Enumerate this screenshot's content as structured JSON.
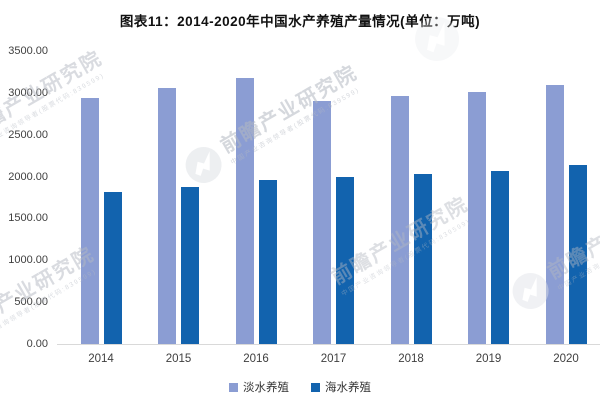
{
  "watermark": {
    "brand": "前瞻产业研究院",
    "subtext": "中国产业咨询领导者(股票代码:839599)"
  },
  "chart_data": {
    "type": "bar",
    "title": "图表11：2014-2020年中国水产养殖产量情况(单位：万吨)",
    "unit": "万吨",
    "categories": [
      "2014",
      "2015",
      "2016",
      "2017",
      "2018",
      "2019",
      "2020"
    ],
    "series": [
      {
        "name": "淡水养殖",
        "color": "#8B9DD3",
        "values": [
          2935.76,
          3062.27,
          3179.26,
          2905.02,
          2959.84,
          3013.74,
          3088.89
        ]
      },
      {
        "name": "海水养殖",
        "color": "#1263AE",
        "values": [
          1812.65,
          1875.63,
          1963.13,
          2000.7,
          2031.22,
          2065.33,
          2135.31
        ]
      }
    ],
    "xlabel": "",
    "ylabel": "",
    "ylim": [
      0,
      3500
    ],
    "ytick_step": 500,
    "ytick_labels": [
      "0.00",
      "500.00",
      "1000.00",
      "1500.00",
      "2000.00",
      "2500.00",
      "3000.00",
      "3500.00"
    ],
    "grid": false,
    "legend_position": "bottom"
  }
}
